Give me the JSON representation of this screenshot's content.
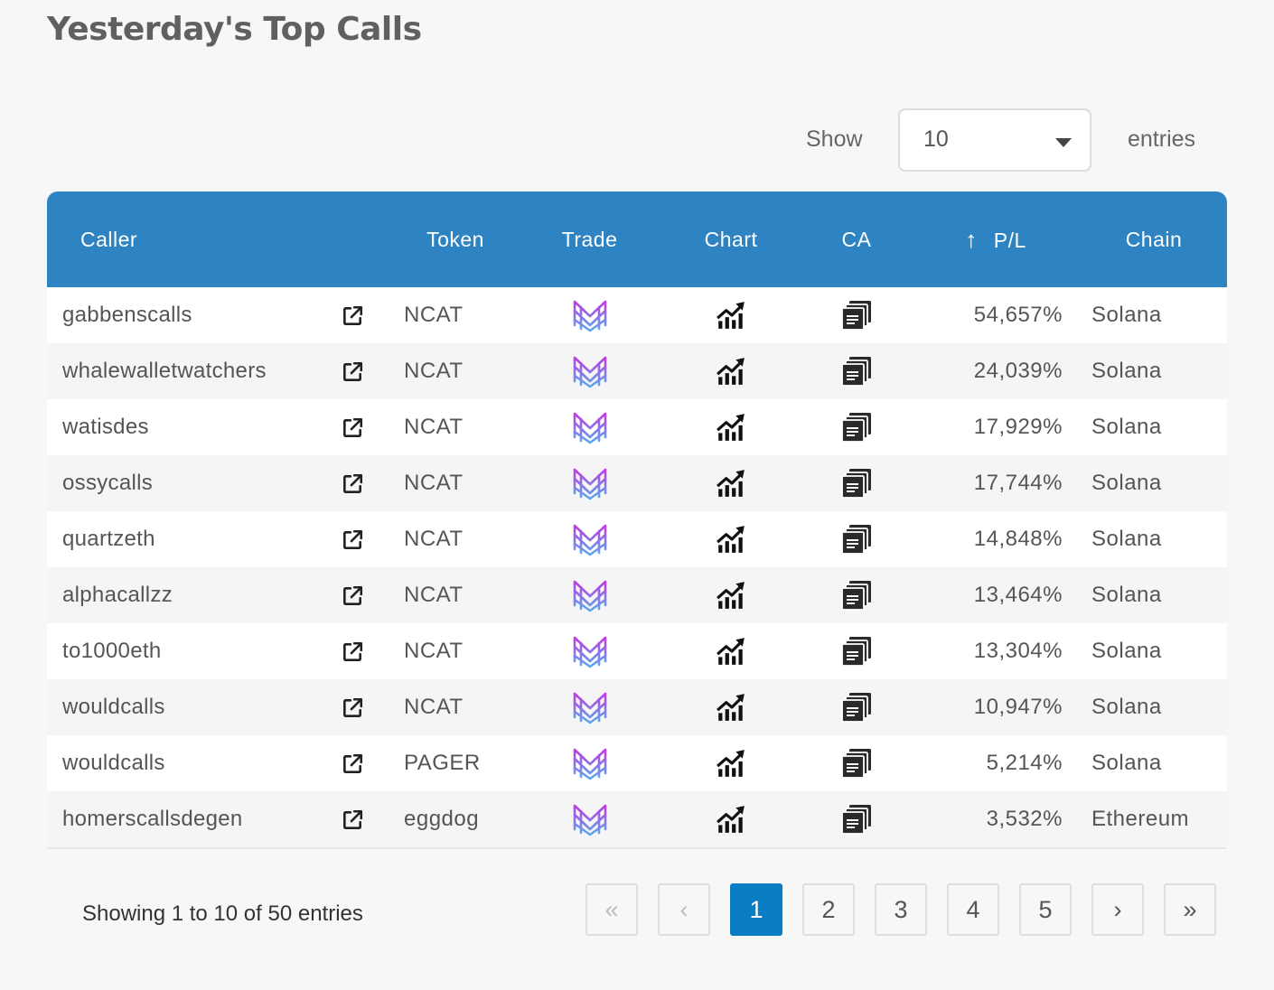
{
  "title": "Yesterday's Top Calls",
  "length_control": {
    "show_label": "Show",
    "selected": "10",
    "entries_label": "entries"
  },
  "table": {
    "columns": {
      "caller": "Caller",
      "token": "Token",
      "trade": "Trade",
      "chart": "Chart",
      "ca": "CA",
      "pl_sort_icon": "↑",
      "pl": "P/L",
      "chain": "Chain"
    },
    "rows": [
      {
        "caller": "gabbenscalls",
        "token": "NCAT",
        "pl": "54,657%",
        "chain": "Solana"
      },
      {
        "caller": "whalewalletwatchers",
        "token": "NCAT",
        "pl": "24,039%",
        "chain": "Solana"
      },
      {
        "caller": "watisdes",
        "token": "NCAT",
        "pl": "17,929%",
        "chain": "Solana"
      },
      {
        "caller": "ossycalls",
        "token": "NCAT",
        "pl": "17,744%",
        "chain": "Solana"
      },
      {
        "caller": "quartzeth",
        "token": "NCAT",
        "pl": "14,848%",
        "chain": "Solana"
      },
      {
        "caller": "alphacallzz",
        "token": "NCAT",
        "pl": "13,464%",
        "chain": "Solana"
      },
      {
        "caller": "to1000eth",
        "token": "NCAT",
        "pl": "13,304%",
        "chain": "Solana"
      },
      {
        "caller": "wouldcalls",
        "token": "NCAT",
        "pl": "10,947%",
        "chain": "Solana"
      },
      {
        "caller": "wouldcalls",
        "token": "PAGER",
        "pl": "5,214%",
        "chain": "Solana"
      },
      {
        "caller": "homerscallsdegen",
        "token": "eggdog",
        "pl": "3,532%",
        "chain": "Ethereum"
      }
    ],
    "row_icons": {
      "link": "external-link-icon",
      "trade": "trade-platform-logo-icon",
      "chart": "chart-growth-icon",
      "ca": "copy-icon"
    }
  },
  "footer": {
    "info": "Showing 1 to 10 of 50 entries",
    "pagination": {
      "first": "«",
      "prev": "‹",
      "next": "›",
      "last": "»",
      "pages": [
        "1",
        "2",
        "3",
        "4",
        "5"
      ],
      "current": "1"
    }
  },
  "colors": {
    "header": "#2e83c3",
    "active_page": "#0a7dc4",
    "trade_logo_top": "#c03ce0",
    "trade_logo_bottom": "#5aa8f0"
  }
}
